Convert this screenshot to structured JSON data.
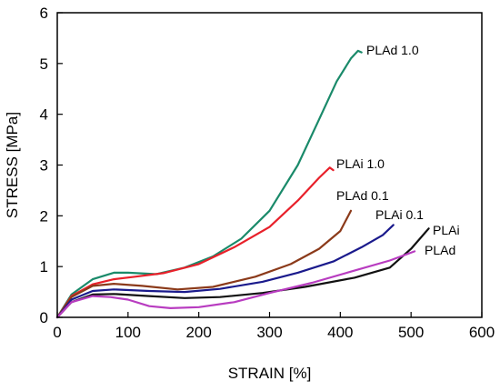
{
  "chart_data": {
    "type": "line",
    "xlabel": "STRAIN [%]",
    "ylabel": "STRESS [MPa]",
    "xlim": [
      0,
      600
    ],
    "ylim": [
      0,
      6
    ],
    "xticks": [
      0,
      100,
      200,
      300,
      400,
      500,
      600
    ],
    "yticks": [
      0,
      1,
      2,
      3,
      4,
      5,
      6
    ],
    "grid": false,
    "legend": "labels at line ends",
    "series": [
      {
        "name": "PLAd 1.0",
        "color": "#1a8a6a",
        "points": [
          [
            0,
            0
          ],
          [
            20,
            0.45
          ],
          [
            50,
            0.75
          ],
          [
            80,
            0.88
          ],
          [
            100,
            0.88
          ],
          [
            140,
            0.85
          ],
          [
            180,
            0.98
          ],
          [
            220,
            1.2
          ],
          [
            260,
            1.55
          ],
          [
            300,
            2.1
          ],
          [
            340,
            3.0
          ],
          [
            370,
            3.9
          ],
          [
            395,
            4.65
          ],
          [
            415,
            5.1
          ],
          [
            425,
            5.25
          ],
          [
            430,
            5.22
          ]
        ]
      },
      {
        "name": "PLAi 1.0",
        "color": "#e8202a",
        "points": [
          [
            0,
            0
          ],
          [
            20,
            0.42
          ],
          [
            50,
            0.65
          ],
          [
            80,
            0.75
          ],
          [
            110,
            0.8
          ],
          [
            150,
            0.87
          ],
          [
            200,
            1.05
          ],
          [
            250,
            1.38
          ],
          [
            300,
            1.78
          ],
          [
            340,
            2.3
          ],
          [
            370,
            2.75
          ],
          [
            385,
            2.95
          ],
          [
            390,
            2.9
          ]
        ]
      },
      {
        "name": "PLAd 0.1",
        "color": "#8b3a1a",
        "points": [
          [
            0,
            0
          ],
          [
            20,
            0.4
          ],
          [
            50,
            0.62
          ],
          [
            80,
            0.66
          ],
          [
            120,
            0.62
          ],
          [
            170,
            0.55
          ],
          [
            220,
            0.6
          ],
          [
            280,
            0.8
          ],
          [
            330,
            1.05
          ],
          [
            370,
            1.35
          ],
          [
            400,
            1.7
          ],
          [
            415,
            2.1
          ]
        ]
      },
      {
        "name": "PLAi 0.1",
        "color": "#1a1a8c",
        "points": [
          [
            0,
            0
          ],
          [
            20,
            0.35
          ],
          [
            50,
            0.52
          ],
          [
            80,
            0.55
          ],
          [
            130,
            0.52
          ],
          [
            180,
            0.5
          ],
          [
            230,
            0.56
          ],
          [
            290,
            0.7
          ],
          [
            340,
            0.88
          ],
          [
            390,
            1.1
          ],
          [
            430,
            1.38
          ],
          [
            460,
            1.62
          ],
          [
            475,
            1.82
          ]
        ]
      },
      {
        "name": "PLAi",
        "color": "#111111",
        "points": [
          [
            0,
            0
          ],
          [
            20,
            0.3
          ],
          [
            50,
            0.45
          ],
          [
            80,
            0.46
          ],
          [
            130,
            0.42
          ],
          [
            180,
            0.38
          ],
          [
            230,
            0.4
          ],
          [
            290,
            0.48
          ],
          [
            350,
            0.6
          ],
          [
            420,
            0.78
          ],
          [
            470,
            0.98
          ],
          [
            500,
            1.35
          ],
          [
            525,
            1.75
          ]
        ]
      },
      {
        "name": "PLAd",
        "color": "#b83cc0",
        "points": [
          [
            0,
            0
          ],
          [
            20,
            0.3
          ],
          [
            50,
            0.42
          ],
          [
            75,
            0.4
          ],
          [
            100,
            0.35
          ],
          [
            130,
            0.22
          ],
          [
            160,
            0.18
          ],
          [
            200,
            0.2
          ],
          [
            250,
            0.3
          ],
          [
            300,
            0.48
          ],
          [
            360,
            0.68
          ],
          [
            420,
            0.92
          ],
          [
            470,
            1.12
          ],
          [
            505,
            1.3
          ]
        ]
      }
    ]
  }
}
